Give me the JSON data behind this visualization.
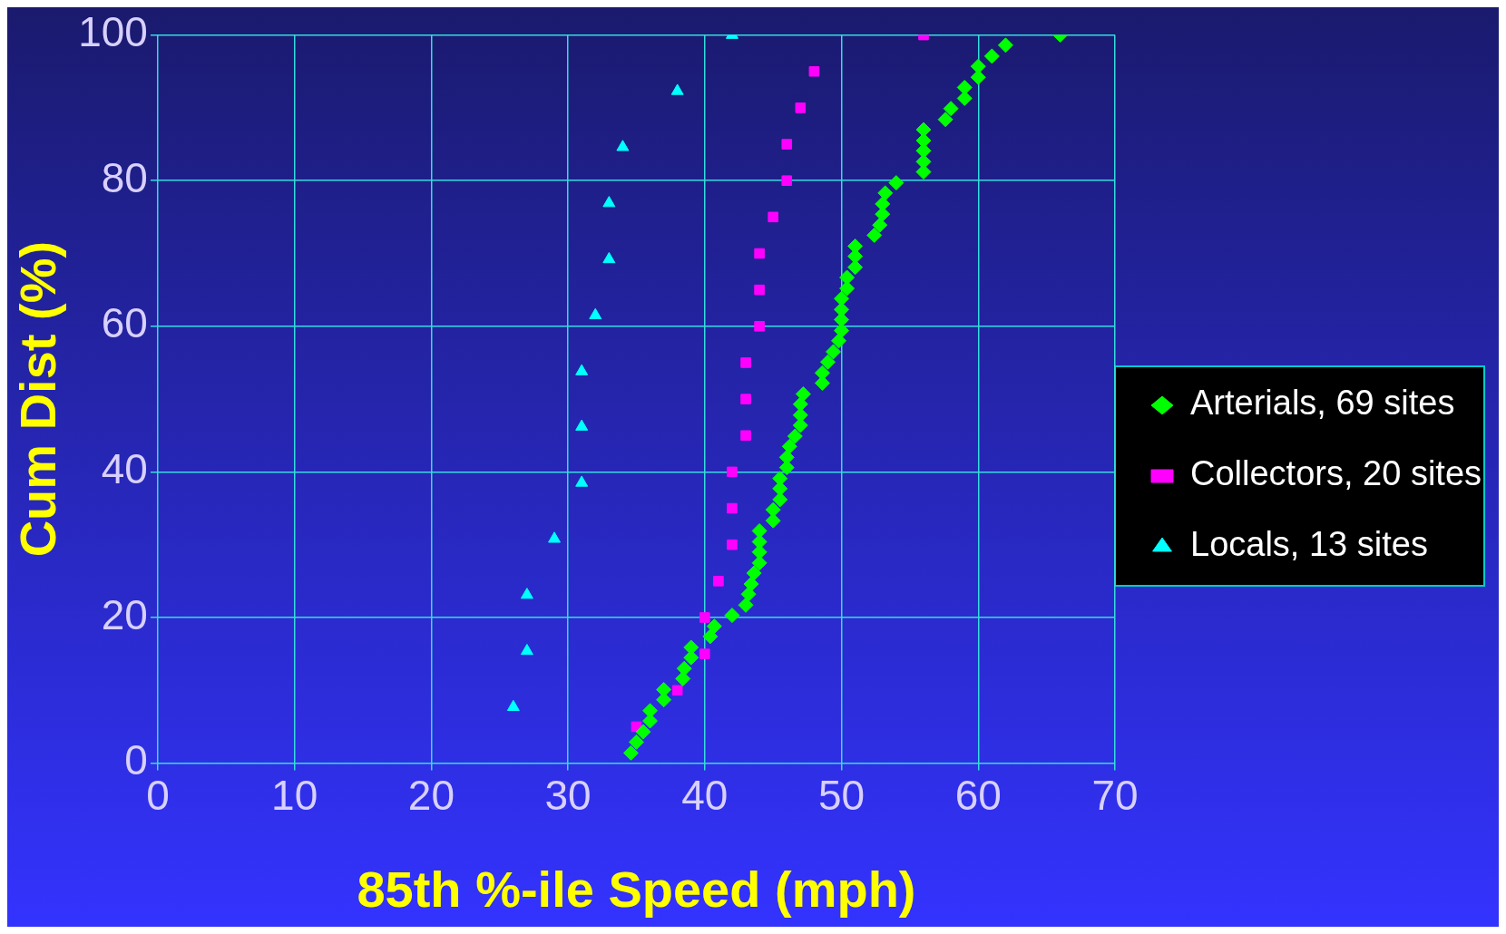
{
  "chart_data": {
    "type": "scatter",
    "xlabel": "85th %-ile Speed (mph)",
    "ylabel": "Cum Dist (%)",
    "xlim": [
      0,
      70
    ],
    "xticks": [
      0,
      10,
      20,
      30,
      40,
      50,
      60,
      70
    ],
    "ylim": [
      0,
      100
    ],
    "yticks": [
      0,
      20,
      40,
      60,
      80,
      100
    ],
    "grid": true,
    "legend": "right",
    "series": [
      {
        "name": "Arterials, 69 sites",
        "color": "#00ff00",
        "marker": "diamond",
        "x": [
          34.6,
          35,
          35.5,
          36,
          36,
          37,
          37,
          38.4,
          38.5,
          39,
          39,
          40.4,
          40.7,
          42,
          43,
          43.2,
          43.4,
          43.6,
          44,
          44,
          44,
          44,
          45,
          45,
          45.5,
          45.5,
          45.5,
          46,
          46,
          46.2,
          46.6,
          47,
          47,
          47,
          47.2,
          48.6,
          48.6,
          49,
          49.4,
          49.8,
          50,
          50,
          50,
          50,
          50.4,
          50.4,
          51,
          51,
          51,
          52.4,
          52.8,
          53,
          53,
          53.2,
          54,
          56,
          56,
          56,
          56,
          56,
          57.6,
          58,
          59,
          59,
          60,
          60,
          61,
          62,
          66
        ],
        "values": [
          1.4,
          2.9,
          4.3,
          5.8,
          7.2,
          8.7,
          10.1,
          11.6,
          13,
          14.5,
          15.9,
          17.4,
          18.8,
          20.3,
          21.7,
          23.2,
          24.6,
          26.1,
          27.5,
          29,
          30.4,
          31.9,
          33.3,
          34.8,
          36.2,
          37.7,
          39.1,
          40.6,
          42,
          43.5,
          44.9,
          46.4,
          47.8,
          49.3,
          50.7,
          52.2,
          53.6,
          55.1,
          56.5,
          58,
          59.4,
          60.9,
          62.3,
          63.8,
          65.2,
          66.7,
          68.1,
          69.6,
          71,
          72.5,
          73.9,
          75.4,
          76.8,
          78.3,
          79.7,
          81.2,
          82.6,
          84.1,
          85.5,
          87,
          88.4,
          89.9,
          91.3,
          92.8,
          94.2,
          95.7,
          97.1,
          98.6,
          100
        ]
      },
      {
        "name": "Collectors, 20 sites",
        "color": "#ff00ff",
        "marker": "square",
        "x": [
          35,
          38,
          40,
          40,
          41,
          42,
          42,
          42,
          43,
          43,
          43,
          44,
          44,
          44,
          45,
          46,
          46,
          47,
          48,
          56
        ],
        "values": [
          5,
          10,
          15,
          20,
          25,
          30,
          35,
          40,
          45,
          50,
          55,
          60,
          65,
          70,
          75,
          80,
          85,
          90,
          95,
          100
        ]
      },
      {
        "name": "Locals, 13 sites",
        "color": "#00ffff",
        "marker": "triangle",
        "x": [
          26,
          27,
          27,
          29,
          31,
          31,
          31,
          32,
          33,
          33,
          34,
          38,
          42
        ],
        "values": [
          7.7,
          15.4,
          23.1,
          30.8,
          38.5,
          46.2,
          53.8,
          61.5,
          69.2,
          76.9,
          84.6,
          92.3,
          100
        ]
      }
    ]
  }
}
